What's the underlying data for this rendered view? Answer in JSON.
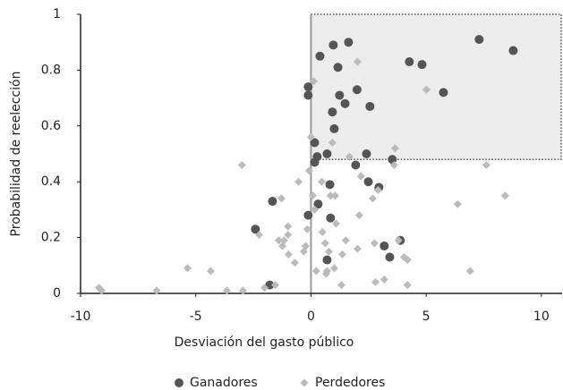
{
  "chart_data": {
    "type": "scatter",
    "x_label": "Desviación del gasto público",
    "y_label": "Probabilidad de reelección",
    "xlim": [
      -10,
      10.9
    ],
    "ylim": [
      0,
      1
    ],
    "xticks": [
      -10,
      -5,
      0,
      5,
      10
    ],
    "yticks": [
      0,
      0.2,
      0.4,
      0.6,
      0.8,
      1
    ],
    "region": {
      "x0": 0,
      "y0": 0.48,
      "color": "#ececec"
    },
    "legend": "bottom",
    "series": [
      {
        "name": "Ganadores",
        "color": "#555555",
        "marker": "circle",
        "x": [
          0.39,
          0.97,
          1.63,
          1.17,
          7.3,
          8.78,
          4.27,
          4.82,
          -0.12,
          -0.12,
          1.24,
          2.0,
          1.48,
          0.93,
          2.56,
          5.75,
          1.01,
          0.16,
          0.27,
          0.16,
          0.7,
          2.41,
          3.53,
          1.94,
          2.49,
          2.95,
          0.82,
          -1.67,
          0.31,
          -0.12,
          0.85,
          -2.41,
          3.18,
          3.88,
          3.42,
          0.7,
          -1.79
        ],
        "values": [
          0.85,
          0.89,
          0.9,
          0.81,
          0.91,
          0.87,
          0.83,
          0.82,
          0.74,
          0.71,
          0.71,
          0.73,
          0.68,
          0.65,
          0.67,
          0.72,
          0.59,
          0.54,
          0.49,
          0.47,
          0.5,
          0.5,
          0.48,
          0.46,
          0.4,
          0.38,
          0.39,
          0.33,
          0.32,
          0.28,
          0.27,
          0.23,
          0.17,
          0.19,
          0.13,
          0.12,
          0.03
        ]
      },
      {
        "name": "Perdedores",
        "color": "#bbbbbb",
        "marker": "diamond",
        "x": [
          -9.2,
          -9.09,
          -6.7,
          -5.36,
          -4.35,
          -3.65,
          -2.95,
          -2.99,
          -2.25,
          -2.02,
          -1.55,
          -1.24,
          -1.4,
          -1.17,
          -1.0,
          -1.0,
          -0.97,
          -1.28,
          -0.7,
          -0.54,
          -0.31,
          -0.23,
          -0.16,
          -0.08,
          0,
          0.12,
          0.08,
          0.16,
          0.23,
          0.5,
          0.62,
          0.66,
          0.78,
          0.85,
          0.93,
          1.05,
          1.09,
          1.01,
          0.47,
          0.7,
          1.32,
          1.36,
          1.51,
          1.67,
          2.02,
          2.02,
          2.17,
          2.1,
          2.68,
          2.76,
          2.8,
          2.91,
          3.18,
          3.65,
          3.61,
          3.8,
          4.04,
          4.19,
          4.19,
          5.01,
          6.37,
          6.91,
          7.61,
          8.43
        ],
        "values": [
          0.02,
          0.01,
          0.01,
          0.09,
          0.08,
          0.01,
          0.01,
          0.46,
          0.21,
          0.02,
          0.03,
          0.17,
          0.19,
          0.19,
          0.24,
          0.21,
          0.14,
          0.34,
          0.11,
          0.4,
          0.15,
          0.17,
          0.23,
          0.44,
          0.56,
          0.76,
          0.35,
          0.3,
          0.08,
          0.22,
          0.18,
          0.07,
          0.15,
          0.35,
          0.54,
          0.35,
          0.25,
          0.09,
          0.4,
          0.08,
          0.03,
          0.14,
          0.19,
          0.49,
          0.83,
          0.16,
          0.42,
          0.28,
          0.34,
          0.18,
          0.04,
          0.37,
          0.05,
          0.52,
          0.46,
          0.19,
          0.13,
          0.03,
          0.12,
          0.73,
          0.32,
          0.08,
          0.46,
          0.35
        ]
      }
    ]
  }
}
